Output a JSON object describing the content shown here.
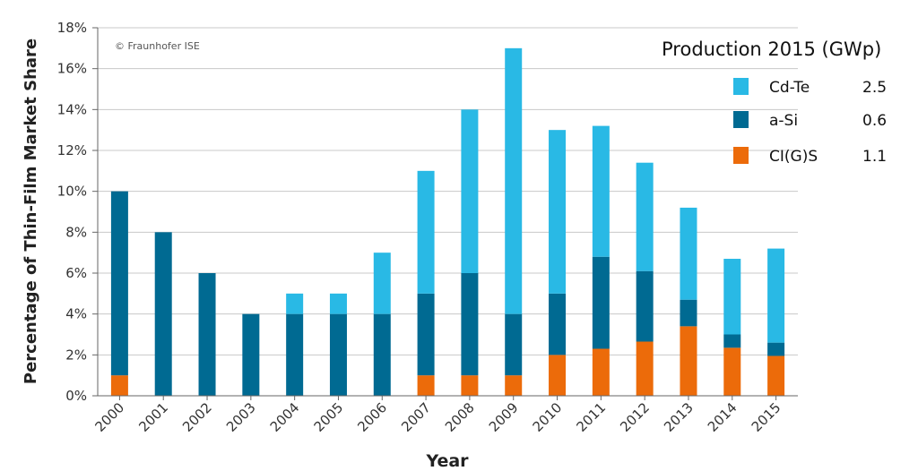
{
  "chart_data": {
    "type": "bar",
    "stacked": true,
    "xlabel": "Year",
    "ylabel": "Percentage of Thin-Film Market Share",
    "ylim": [
      0,
      18
    ],
    "ytick_step": 2,
    "ytick_suffix": "%",
    "grid": "horizontal",
    "copyright": "© Fraunhofer ISE",
    "categories": [
      "2000",
      "2001",
      "2002",
      "2003",
      "2004",
      "2005",
      "2006",
      "2007",
      "2008",
      "2009",
      "2010",
      "2011",
      "2012",
      "2013",
      "2014",
      "2015"
    ],
    "series": [
      {
        "name": "CI(G)S",
        "color": "#ec6b0a",
        "values": [
          1,
          0,
          0,
          0,
          0,
          0,
          0,
          1,
          1,
          1,
          2,
          2.3,
          2.65,
          3.4,
          2.35,
          1.95
        ]
      },
      {
        "name": "a-Si",
        "color": "#006a92",
        "values": [
          9,
          8,
          6,
          4,
          4,
          4,
          4,
          4,
          5,
          3,
          3,
          4.5,
          3.45,
          1.3,
          0.65,
          0.65
        ]
      },
      {
        "name": "Cd-Te",
        "color": "#29b9e5",
        "values": [
          0,
          0,
          0,
          0,
          1,
          1,
          3,
          6,
          8,
          13,
          8,
          6.4,
          5.3,
          4.5,
          3.7,
          4.6
        ]
      }
    ],
    "legend": {
      "title": "Production 2015 (GWp)",
      "placement": "top-right",
      "entries": [
        {
          "label": "Cd-Te",
          "value": "2.5",
          "color": "#29b9e5"
        },
        {
          "label": "a-Si",
          "value": "0.6",
          "color": "#006a92"
        },
        {
          "label": "CI(G)S",
          "value": "1.1",
          "color": "#ec6b0a"
        }
      ]
    }
  }
}
